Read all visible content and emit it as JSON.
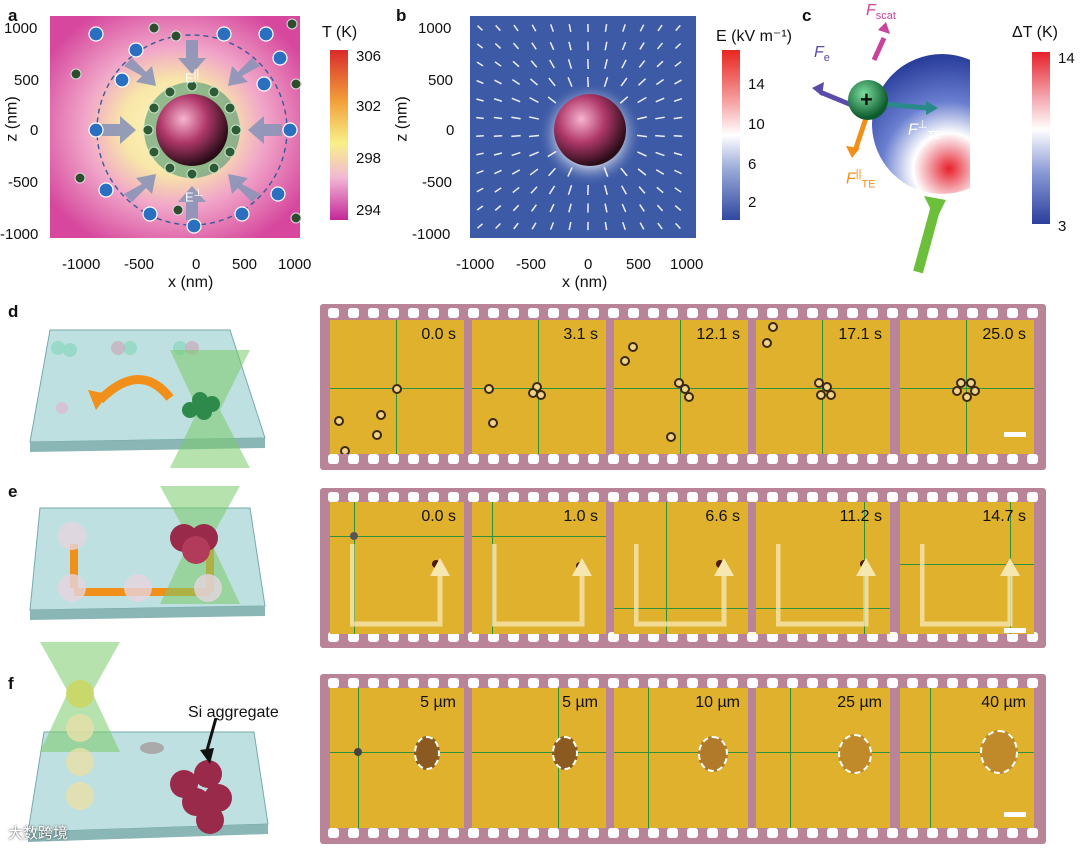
{
  "panels": {
    "a": {
      "label": "a",
      "ylabel": "z (nm)",
      "xlabel": "x (nm)",
      "yticks": [
        "1000",
        "500",
        "0",
        "-500",
        "-1000"
      ],
      "xticks": [
        "-1000",
        "-500",
        "0",
        "500",
        "1000"
      ],
      "field_top": "E",
      "field_top_sup": "||",
      "field_bottom": "E",
      "field_bottom_sup": "⊥",
      "colorbar_title": "T (K)",
      "colorbar_ticks": [
        "306",
        "302",
        "298",
        "294"
      ]
    },
    "b": {
      "label": "b",
      "ylabel": "z (nm)",
      "xlabel": "x (nm)",
      "yticks": [
        "1000",
        "500",
        "0",
        "-500",
        "-1000"
      ],
      "xticks": [
        "-1000",
        "-500",
        "0",
        "500",
        "1000"
      ],
      "colorbar_title": "E (kV m⁻¹)",
      "colorbar_ticks": [
        "14",
        "10",
        "6",
        "2"
      ]
    },
    "c": {
      "label": "c",
      "f_scat": "F",
      "f_scat_sub": "scat",
      "f_e": "F",
      "f_e_sub": "e",
      "f_te_perp": "F",
      "f_te_perp_sup": "⊥",
      "f_te_perp_sub": "TE",
      "f_te_par": "F",
      "f_te_par_sup": "||",
      "f_te_par_sub": "TE",
      "colorbar_title": "ΔT (K)",
      "colorbar_ticks": [
        "14",
        "3"
      ]
    },
    "d": {
      "label": "d",
      "times": [
        "0.0 s",
        "3.1 s",
        "12.1 s",
        "17.1 s",
        "25.0 s"
      ]
    },
    "e": {
      "label": "e",
      "times": [
        "0.0 s",
        "1.0 s",
        "6.6 s",
        "11.2 s",
        "14.7 s"
      ]
    },
    "f": {
      "label": "f",
      "times": [
        "5 µm",
        "5 µm",
        "10 µm",
        "25 µm",
        "40 µm"
      ],
      "annotation": "Si aggregate"
    }
  },
  "watermark": "大数跨境",
  "colors": {
    "film": "#b98398",
    "frame_bg": "#e0b12c",
    "crosshair": "#2f8f3a",
    "field_bg": "#3d5aa6",
    "sphere": "#b0386a"
  }
}
